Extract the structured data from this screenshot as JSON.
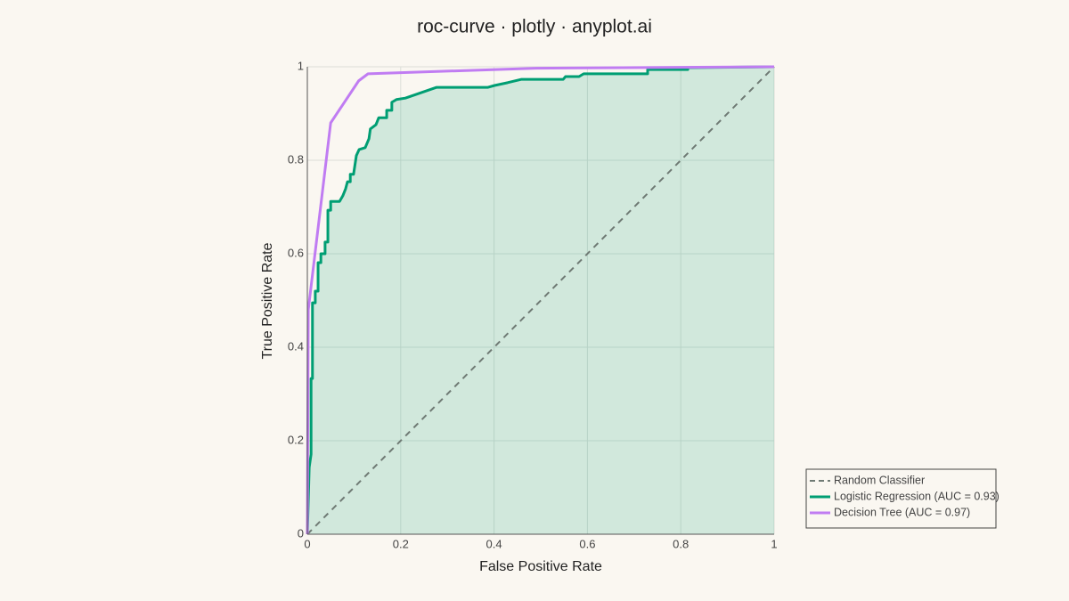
{
  "chart_data": {
    "type": "line",
    "title": "roc-curve · plotly · anyplot.ai",
    "x_label": "False Positive Rate",
    "y_label": "True Positive Rate",
    "xlim": [
      0,
      1
    ],
    "ylim": [
      0,
      1
    ],
    "xticks": [
      0,
      0.2,
      0.4,
      0.6,
      0.8,
      1
    ],
    "yticks": [
      0,
      0.2,
      0.4,
      0.6,
      0.8,
      1
    ],
    "grid": true,
    "legend": "right",
    "series": [
      {
        "name": "Random Classifier",
        "color": "#6f7a74",
        "dash": true,
        "fill": false,
        "x": [
          0,
          1
        ],
        "values": [
          0,
          1
        ]
      },
      {
        "name": "Logistic Regression (AUC = 0.93)",
        "color": "#009E73",
        "dash": false,
        "fill": true,
        "x": [
          0,
          0.004,
          0.008,
          0.008,
          0.011,
          0.011,
          0.017,
          0.017,
          0.023,
          0.023,
          0.029,
          0.029,
          0.038,
          0.038,
          0.044,
          0.044,
          0.05,
          0.05,
          0.069,
          0.076,
          0.082,
          0.086,
          0.092,
          0.092,
          0.099,
          0.105,
          0.111,
          0.124,
          0.132,
          0.135,
          0.147,
          0.153,
          0.17,
          0.17,
          0.181,
          0.181,
          0.191,
          0.21,
          0.239,
          0.277,
          0.387,
          0.401,
          0.429,
          0.458,
          0.548,
          0.553,
          0.582,
          0.592,
          0.729,
          0.729,
          0.815,
          0.815,
          1
        ],
        "values": [
          0,
          0.143,
          0.171,
          0.333,
          0.333,
          0.495,
          0.495,
          0.52,
          0.52,
          0.581,
          0.581,
          0.6,
          0.6,
          0.625,
          0.625,
          0.693,
          0.693,
          0.712,
          0.712,
          0.724,
          0.739,
          0.754,
          0.754,
          0.77,
          0.77,
          0.81,
          0.823,
          0.827,
          0.846,
          0.867,
          0.876,
          0.891,
          0.891,
          0.907,
          0.907,
          0.924,
          0.93,
          0.933,
          0.943,
          0.956,
          0.956,
          0.96,
          0.966,
          0.973,
          0.973,
          0.979,
          0.979,
          0.985,
          0.985,
          0.994,
          0.994,
          0.998,
          1
        ]
      },
      {
        "name": "Decision Tree (AUC = 0.97)",
        "color": "#C07CF2",
        "dash": false,
        "fill": false,
        "x": [
          0,
          0.002,
          0.05,
          0.11,
          0.13,
          0.49,
          1
        ],
        "values": [
          0,
          0.48,
          0.88,
          0.97,
          0.985,
          0.997,
          1
        ]
      }
    ]
  }
}
